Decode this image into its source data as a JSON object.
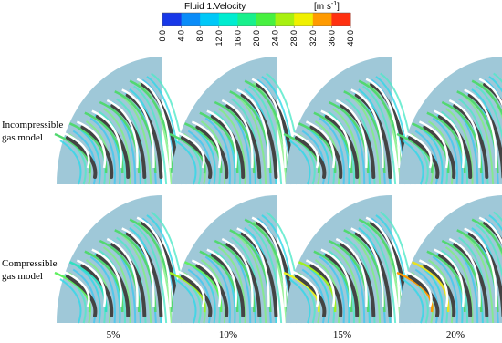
{
  "colorbar": {
    "title": "Fluid 1.Velocity",
    "unit": [
      "[m s",
      "-1",
      "]"
    ],
    "ticks": [
      "0.0",
      "4.0",
      "8.0",
      "12.0",
      "16.0",
      "20.0",
      "24.0",
      "28.0",
      "32.0",
      "36.0",
      "40.0"
    ],
    "colors": [
      "#1838e8",
      "#0a8cf8",
      "#00c8f8",
      "#00ecd0",
      "#18f08c",
      "#48f040",
      "#a8f010",
      "#f0f000",
      "#ff9a00",
      "#ff3010"
    ]
  },
  "rows": [
    [
      "Incompressible",
      "gas model"
    ],
    [
      "Compressible",
      "gas model"
    ]
  ],
  "columns": [
    "5%",
    "10%",
    "15%",
    "20%"
  ]
}
